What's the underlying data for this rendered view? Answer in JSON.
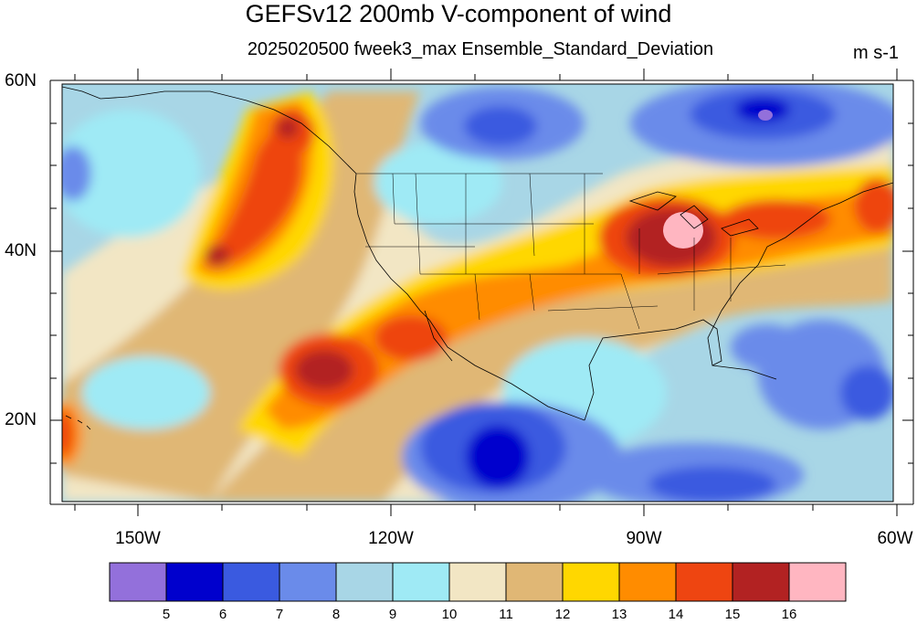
{
  "title": "GEFSv12 200mb V-component of wind",
  "subtitle": "2025020500 fweek3_max Ensemble_Standard_Deviation",
  "units": "m s-1",
  "map": {
    "projection": "cylindrical-equidistant",
    "lon_range": [
      -163,
      -60
    ],
    "lat_range": [
      10,
      60
    ],
    "lat_ticks": [
      "60N",
      "40N",
      "20N"
    ],
    "lon_ticks": [
      "150W",
      "120W",
      "90W",
      "60W"
    ],
    "coastlines": true,
    "state_boundaries": true
  },
  "colorbar": {
    "levels": [
      "5",
      "6",
      "7",
      "8",
      "9",
      "10",
      "11",
      "12",
      "13",
      "14",
      "15",
      "16"
    ],
    "colors": [
      "#9370DB",
      "#0000CD",
      "#3A5AE0",
      "#6A8BEA",
      "#A8D6E6",
      "#9FEAF5",
      "#F2E6C4",
      "#E0B775",
      "#FFD700",
      "#FF8C00",
      "#EE4511",
      "#B22222",
      "#FFB6C1"
    ]
  },
  "field_description": "Standard deviation of 200mb meridional wind; maxima (14-16+) over Great Lakes/Midwest and the eastern Pacific SW of California and Gulf of Alaska; minima (5-7) over Hudson Bay, central Canada, and tropical east Pacific"
}
